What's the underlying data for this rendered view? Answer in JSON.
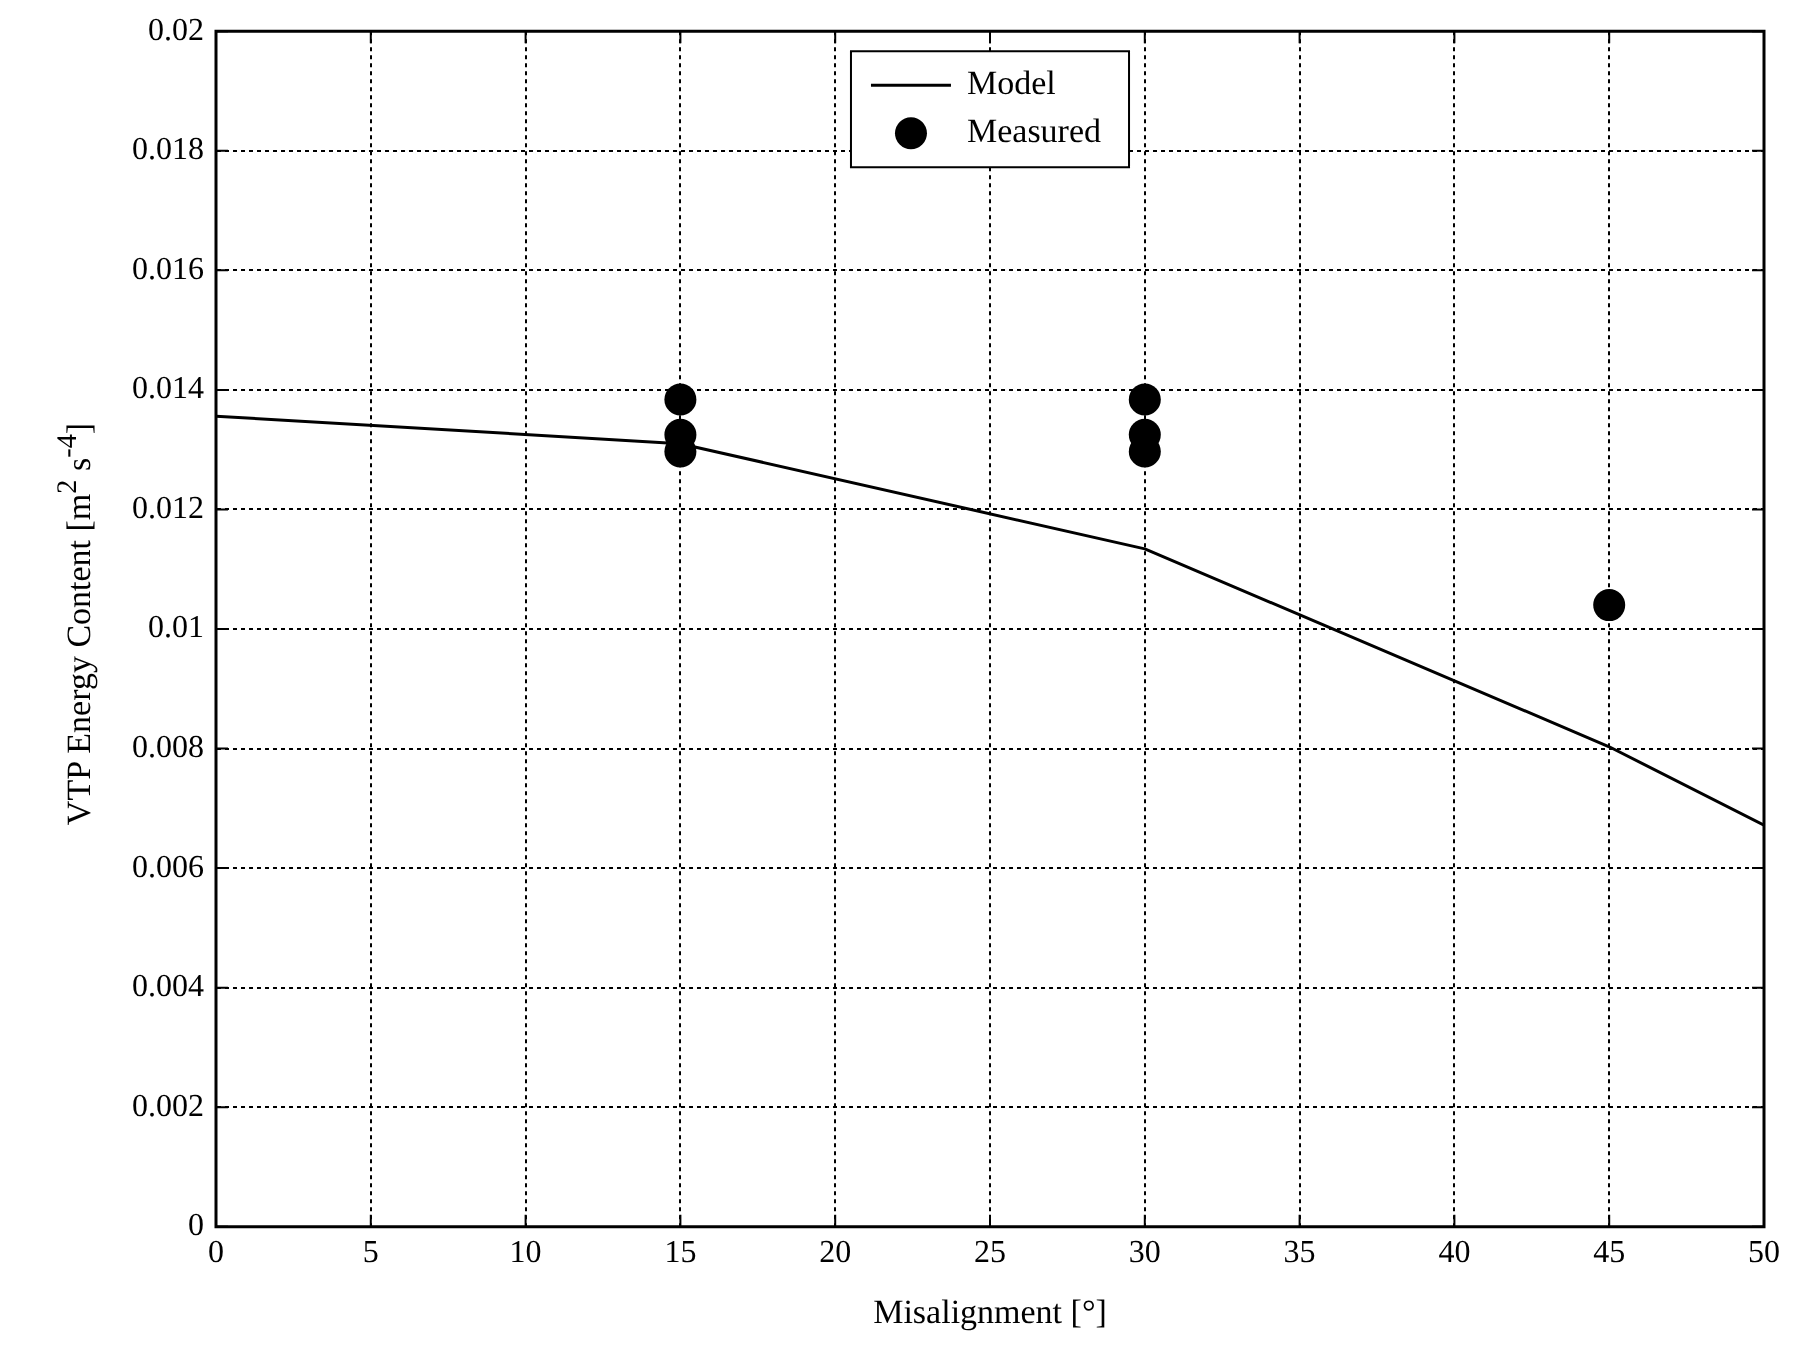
{
  "chart_data": {
    "type": "line",
    "xlabel": "Misalignment [°]",
    "ylabel": "VTP Energy Content [m$^{2}$ s$^{-4}$]",
    "xlim": [
      0,
      50
    ],
    "xticks": [
      0,
      5,
      10,
      15,
      20,
      25,
      30,
      35,
      40,
      45,
      50
    ],
    "ylim": [
      0,
      0.02
    ],
    "yticks": [
      0,
      0.002,
      0.004,
      0.006,
      0.008,
      0.01,
      0.012,
      0.014,
      0.016,
      0.018,
      0.02
    ],
    "grid": true,
    "legend": "top",
    "series": [
      {
        "name": "Model",
        "type": "line",
        "color": "#000000",
        "marker": "none",
        "x": [
          0,
          15,
          30,
          45,
          50
        ],
        "values": [
          0.01356,
          0.0131,
          0.01134,
          0.00803,
          0.00672
        ]
      },
      {
        "name": "Measured",
        "type": "scatter",
        "color": "#000000",
        "marker": "circle",
        "x": [
          15,
          15,
          15,
          30,
          30,
          30,
          45
        ],
        "values": [
          0.01384,
          0.01325,
          0.01297,
          0.01384,
          0.01325,
          0.01297,
          0.0104
        ]
      }
    ]
  }
}
